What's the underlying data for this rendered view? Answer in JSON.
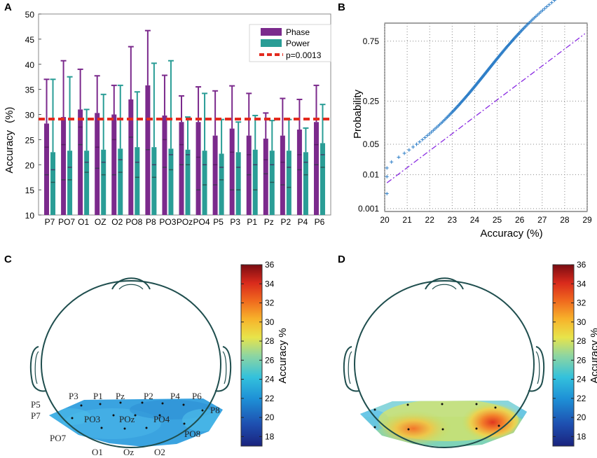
{
  "panel_labels": {
    "A": "A",
    "B": "B",
    "C": "C",
    "D": "D"
  },
  "chart_data": [
    {
      "panel": "A",
      "type": "bar",
      "title": "",
      "xlabel": "",
      "ylabel": "Accuracy (%)",
      "ylabel_parts": [
        "Accuracy",
        "(%)"
      ],
      "ylim": [
        10,
        50
      ],
      "yticks": [
        10,
        15,
        20,
        25,
        30,
        35,
        40,
        45,
        50
      ],
      "categories": [
        "P7",
        "PO7",
        "O1",
        "OZ",
        "O2",
        "PO8",
        "P8",
        "PO3",
        "POz",
        "PO4",
        "P5",
        "P3",
        "P1",
        "Pz",
        "P2",
        "P4",
        "P6"
      ],
      "series": [
        {
          "name": "Phase",
          "color": "#7b2a8c",
          "values": [
            28.2,
            29.5,
            31.0,
            30.3,
            30.0,
            33.0,
            35.8,
            29.8,
            28.5,
            28.5,
            25.8,
            27.2,
            25.8,
            25.2,
            25.8,
            27.0,
            28.5
          ],
          "err_upper": [
            37.0,
            40.7,
            39.0,
            37.7,
            35.8,
            43.5,
            46.7,
            37.8,
            33.7,
            35.5,
            34.7,
            35.7,
            34.2,
            30.3,
            33.2,
            33.0,
            35.8
          ],
          "err_lower": [
            18.0,
            17.0,
            24.0,
            19.3,
            18.0,
            25.5,
            23.0,
            19.5,
            20.0,
            15.0,
            16.0,
            15.0,
            18.0,
            18.2,
            16.0,
            19.0,
            20.0
          ],
          "err_mid": [
            23.5,
            24.0,
            27.5,
            23.5,
            25.0,
            29.0,
            29.0,
            25.0,
            24.0,
            21.5,
            20.0,
            22.5,
            22.0,
            21.0,
            20.5,
            22.0,
            24.0
          ]
        },
        {
          "name": "Power",
          "color": "#2a9d96",
          "values": [
            22.5,
            22.8,
            22.8,
            23.0,
            23.2,
            23.5,
            23.5,
            23.2,
            23.0,
            22.8,
            22.2,
            22.5,
            23.0,
            22.8,
            22.8,
            22.5,
            24.3
          ],
          "err_upper": [
            37.0,
            37.5,
            31.0,
            34.0,
            35.8,
            34.5,
            40.2,
            40.7,
            29.5,
            34.2,
            29.0,
            28.5,
            29.8,
            28.8,
            29.0,
            27.3,
            32.0
          ],
          "err_lower": [
            16.5,
            17.0,
            18.5,
            18.0,
            18.5,
            17.5,
            17.5,
            19.0,
            20.0,
            16.0,
            17.0,
            15.0,
            15.0,
            16.5,
            15.5,
            18.0,
            19.5
          ],
          "err_mid": [
            19.0,
            19.5,
            20.5,
            20.5,
            21.0,
            20.5,
            20.0,
            22.0,
            22.0,
            20.0,
            19.5,
            19.5,
            20.0,
            20.0,
            19.5,
            20.5,
            22.0
          ]
        }
      ],
      "threshold": {
        "name": "p=0.0013",
        "value": 29.1,
        "color": "#e32a1e"
      },
      "legend": [
        "Phase",
        "Power",
        "p=0.0013"
      ],
      "legend_position": "top-right"
    },
    {
      "panel": "B",
      "type": "scatter",
      "title": "",
      "xlabel": "Accuracy (%)",
      "ylabel": "Probability",
      "xlim": [
        20,
        29
      ],
      "xticks": [
        20,
        21,
        22,
        23,
        24,
        25,
        26,
        27,
        28,
        29
      ],
      "ytick_labels": [
        "0.001",
        "0.01",
        "0.05",
        "0.25",
        "0.75"
      ],
      "ytick_probabilities": [
        0.001,
        0.01,
        0.05,
        0.25,
        0.75
      ],
      "grid": true,
      "marker": "+",
      "color": "#2f7fc8",
      "n_points": 170,
      "x_range": [
        20.1,
        28.9
      ],
      "reference_line": {
        "style": "dash-dot",
        "color": "#8a2be2",
        "from": [
          20.1,
          0.006
        ],
        "to": [
          28.9,
          0.8
        ]
      }
    },
    {
      "panel": "C",
      "type": "heatmap",
      "description": "topoplot",
      "colorbar_label": "Accuracy %",
      "colorbar_range": [
        17,
        36
      ],
      "colorbar_ticks": [
        18,
        20,
        22,
        24,
        26,
        28,
        30,
        32,
        34,
        36
      ],
      "electrode_labels": [
        "P3",
        "P1",
        "Pz",
        "P2",
        "P4",
        "P6",
        "P5",
        "P8",
        "P7",
        "PO3",
        "POz",
        "PO4",
        "PO7",
        "PO8",
        "O1",
        "Oz",
        "O2"
      ],
      "dominant_value": 21
    },
    {
      "panel": "D",
      "type": "heatmap",
      "description": "topoplot",
      "colorbar_label": "Accuracy %",
      "colorbar_range": [
        17,
        36
      ],
      "colorbar_ticks": [
        18,
        20,
        22,
        24,
        26,
        28,
        30,
        32,
        34,
        36
      ],
      "hotspots": [
        {
          "region": "left occipital",
          "value": 30
        },
        {
          "region": "right occipital",
          "value": 33
        }
      ]
    }
  ]
}
